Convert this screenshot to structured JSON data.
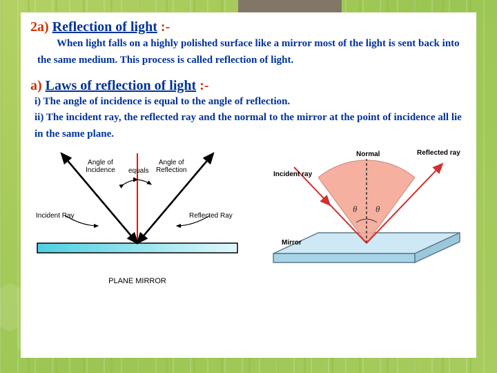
{
  "section1": {
    "number": "2a)",
    "title": "Reflection of light",
    "colon": ":-",
    "body": "When light falls on a highly polished surface like a mirror most of the light is sent back into the same medium. This process is called reflection of light."
  },
  "section2": {
    "number": "a)",
    "title": "Laws of reflection of light",
    "colon": ":-",
    "law1": "i) The angle of incidence is equal to the angle of reflection.",
    "law2": "ii) The incident ray, the reflected ray and the normal to the mirror at the point of incidence all lie in the same plane."
  },
  "diagram1": {
    "angle_incidence": "Angle of\nIncidence",
    "equals": "equals",
    "angle_reflection": "Angle of\nReflection",
    "incident_ray": "Incident Ray",
    "reflected_ray": "Reflected Ray",
    "caption": "PLANE MIRROR",
    "colors": {
      "normal": "#ff0000",
      "ray": "#000000",
      "mirror_fill": "#4dd0e1",
      "mirror_gradient": "#b2ebf2"
    }
  },
  "diagram2": {
    "normal": "Normal",
    "incident_ray": "Incident ray",
    "reflected_ray": "Reflected ray",
    "mirror": "Mirror",
    "theta": "θ",
    "colors": {
      "ray": "#d32f2f",
      "normal": "#333333",
      "cone": "#f4a896",
      "mirror_top": "#cfe8f5",
      "mirror_side": "#a8d4e8",
      "outline": "#5a7a8a"
    }
  }
}
